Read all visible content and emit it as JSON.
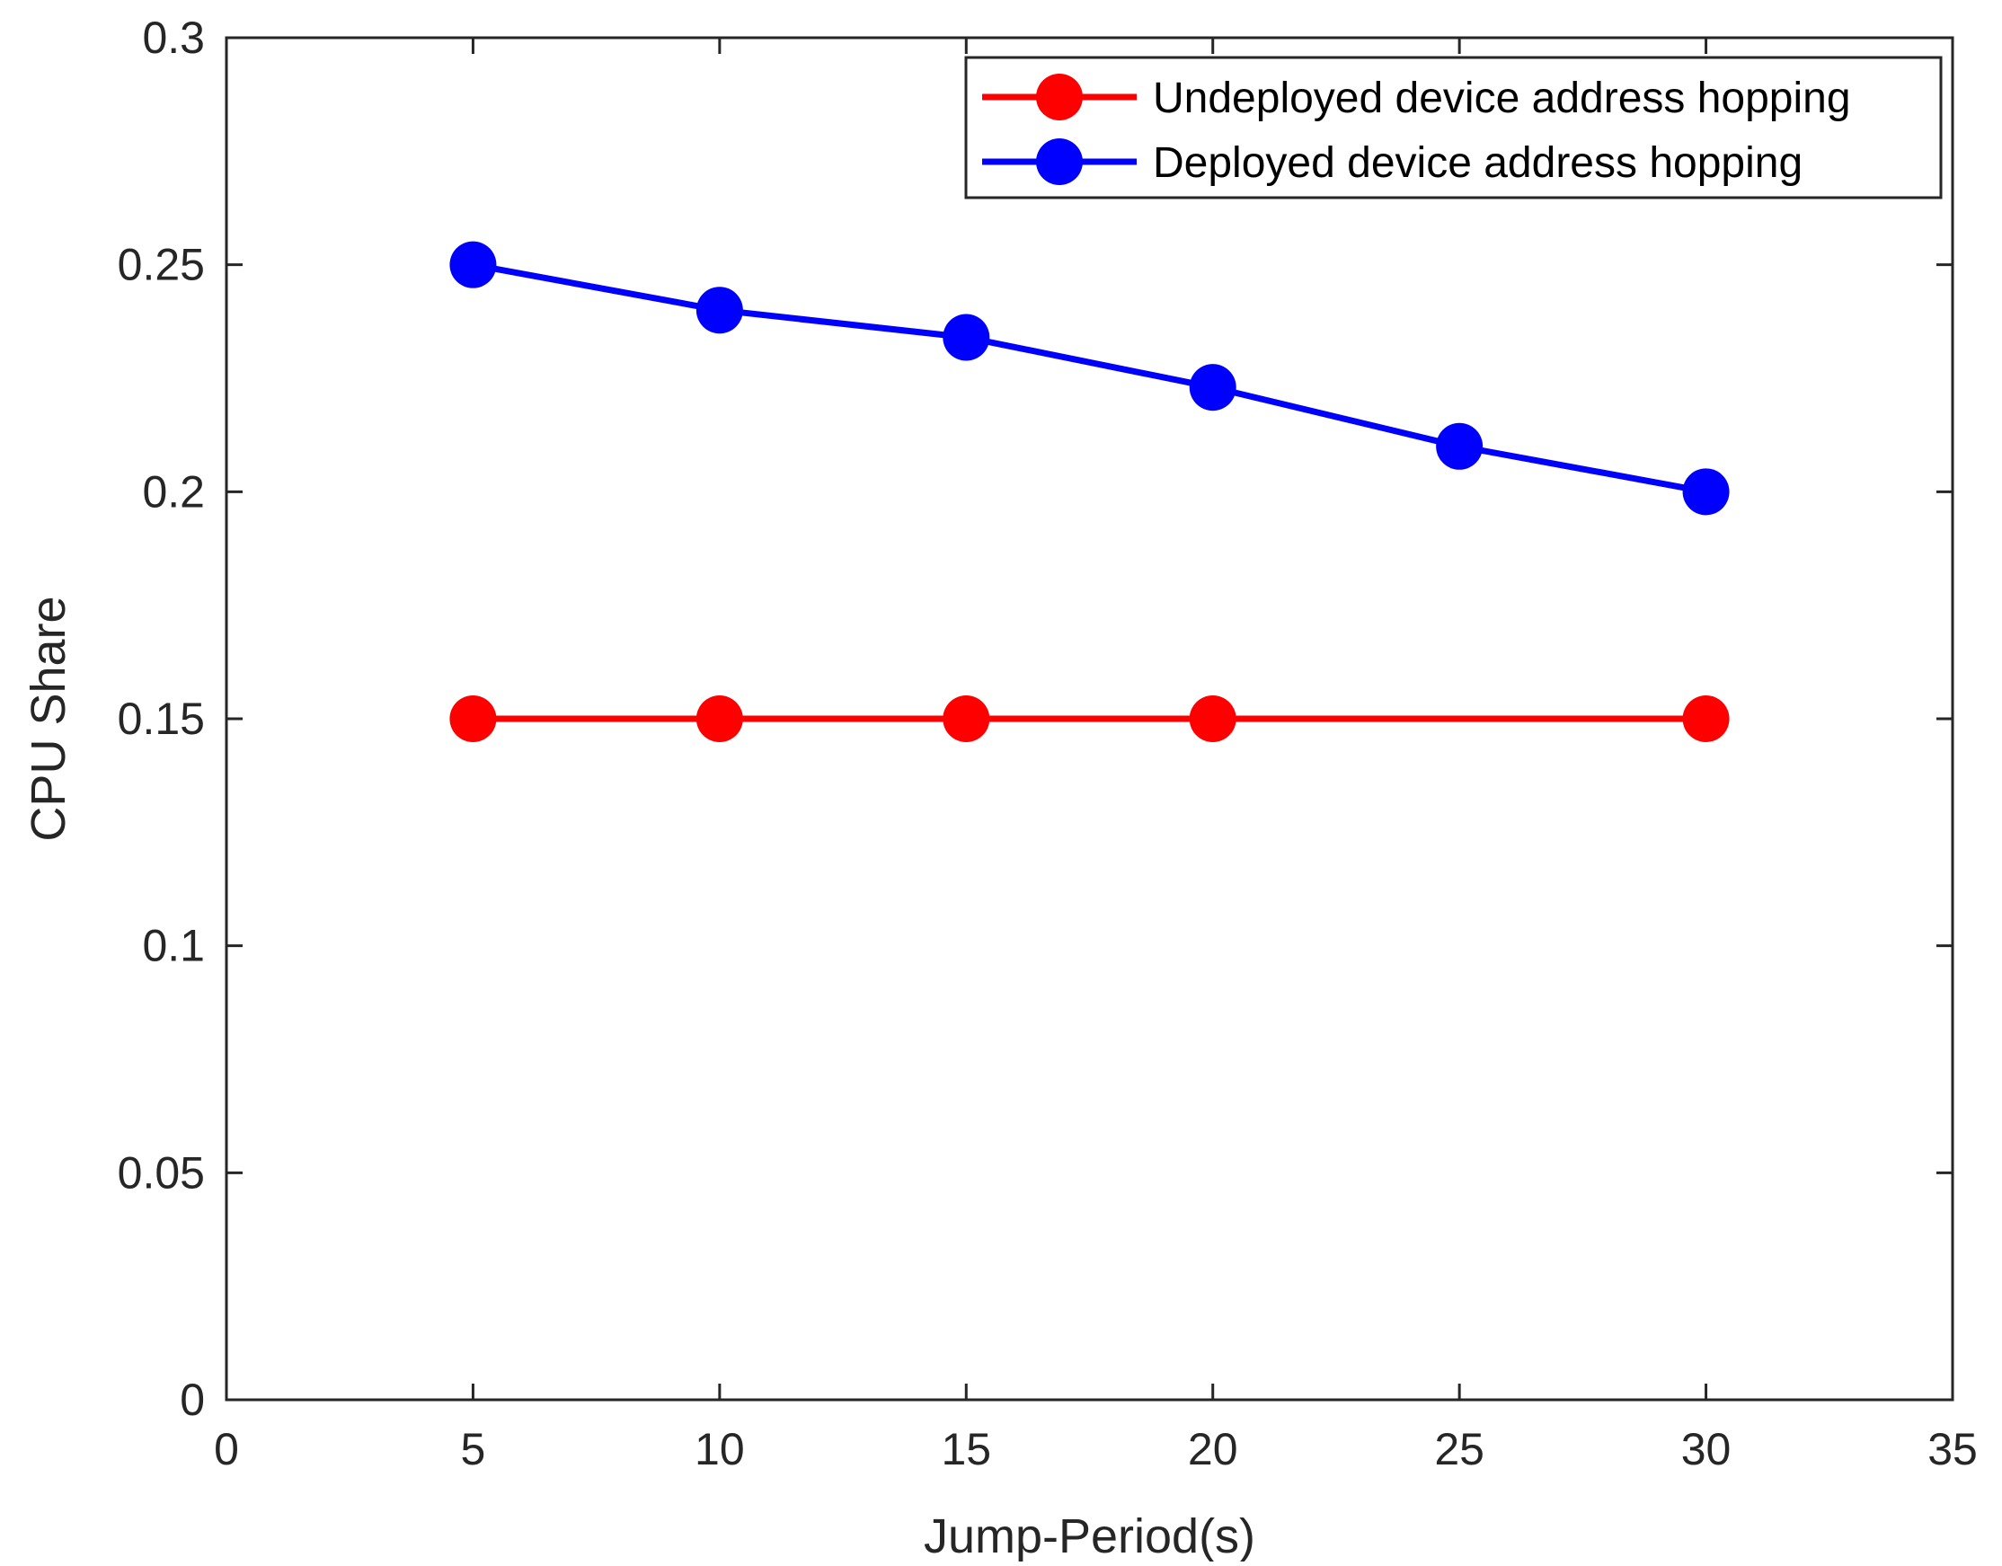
{
  "chart_data": {
    "type": "line",
    "title": "",
    "xlabel": "Jump-Period(s)",
    "ylabel": "CPU Share",
    "xlim": [
      0,
      35
    ],
    "ylim": [
      0,
      0.3
    ],
    "xticks": [
      0,
      5,
      10,
      15,
      20,
      25,
      30,
      35
    ],
    "yticks": [
      0,
      0.05,
      0.1,
      0.15,
      0.2,
      0.25,
      0.3
    ],
    "xtick_labels": [
      "0",
      "5",
      "10",
      "15",
      "20",
      "25",
      "30",
      "35"
    ],
    "ytick_labels": [
      "0",
      "0.05",
      "0.1",
      "0.15",
      "0.2",
      "0.25",
      "0.3"
    ],
    "grid": false,
    "legend_position": "top-right",
    "series": [
      {
        "name": "Undeployed device address hopping",
        "color": "#ff0000",
        "marker": "circle",
        "x": [
          5,
          10,
          15,
          20,
          30
        ],
        "y": [
          0.15,
          0.15,
          0.15,
          0.15,
          0.15
        ]
      },
      {
        "name": "Deployed device address hopping",
        "color": "#0000ff",
        "marker": "circle",
        "x": [
          5,
          10,
          15,
          20,
          25,
          30
        ],
        "y": [
          0.25,
          0.24,
          0.234,
          0.223,
          0.21,
          0.2
        ]
      }
    ]
  }
}
